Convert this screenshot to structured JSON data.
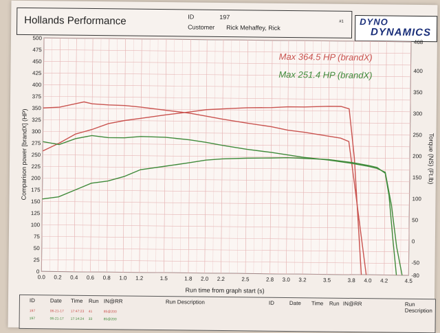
{
  "header": {
    "shop_name": "Hollands Performance",
    "id_label": "ID",
    "id_value": "197",
    "customer_label": "Customer",
    "customer_value": "Rick Mehaffey, Rick",
    "page_mark": "#1"
  },
  "logo": {
    "line1": "DYNO",
    "line2": "DYNAMICS"
  },
  "colors": {
    "run_red": "#c9534f",
    "run_green": "#3f8a3a",
    "grid": "#e6b5b5",
    "text": "#222222"
  },
  "chart_data": {
    "type": "line",
    "xlabel": "Run time from graph start (s)",
    "ylabel": "Comparison power [brandX] (HP)",
    "y2label": "Torque (NS) (Ft.lb)",
    "xlim": [
      0,
      4.5
    ],
    "ylim": [
      0,
      500
    ],
    "y2lim": [
      -80,
      468
    ],
    "grid": true,
    "x_ticks": [
      "0.0",
      "0.2",
      "0.4",
      "0.6",
      "0.8",
      "1.0",
      "1.2",
      "1.5",
      "1.8",
      "2.0",
      "2.2",
      "2.5",
      "2.8",
      "3.0",
      "3.2",
      "3.5",
      "3.8",
      "4.0",
      "4.2",
      "4.5"
    ],
    "y_ticks": [
      "500",
      "475",
      "450",
      "425",
      "400",
      "375",
      "350",
      "325",
      "300",
      "275",
      "250",
      "225",
      "200",
      "175",
      "150",
      "125",
      "100",
      "75",
      "50",
      "25",
      "0"
    ],
    "y2_ticks": [
      "468",
      "400",
      "350",
      "300",
      "250",
      "200",
      "150",
      "100",
      "50",
      "0",
      "-50",
      "-80"
    ],
    "annotations": [
      {
        "text": "Max 364.5 HP (brandX)",
        "color": "#c9534f"
      },
      {
        "text": "Max 251.4 HP (brandX)",
        "color": "#3f8a3a"
      }
    ],
    "series": [
      {
        "color": "#c9534f",
        "kind": "power",
        "points": [
          [
            0,
            258
          ],
          [
            0.2,
            275
          ],
          [
            0.4,
            295
          ],
          [
            0.6,
            305
          ],
          [
            0.8,
            318
          ],
          [
            1.0,
            325
          ],
          [
            1.2,
            330
          ],
          [
            1.5,
            338
          ],
          [
            1.8,
            345
          ],
          [
            2.0,
            350
          ],
          [
            2.2,
            352
          ],
          [
            2.5,
            355
          ],
          [
            2.8,
            356
          ],
          [
            3.0,
            358
          ],
          [
            3.2,
            358
          ],
          [
            3.5,
            360
          ],
          [
            3.65,
            360
          ],
          [
            3.75,
            355
          ],
          [
            3.82,
            250
          ],
          [
            3.88,
            100
          ],
          [
            3.92,
            0
          ]
        ]
      },
      {
        "color": "#c9534f",
        "kind": "torque",
        "points": [
          [
            0,
            350
          ],
          [
            0.2,
            352
          ],
          [
            0.4,
            360
          ],
          [
            0.5,
            364
          ],
          [
            0.6,
            360
          ],
          [
            0.8,
            358
          ],
          [
            1.0,
            357
          ],
          [
            1.2,
            354
          ],
          [
            1.5,
            348
          ],
          [
            1.8,
            342
          ],
          [
            2.0,
            336
          ],
          [
            2.2,
            330
          ],
          [
            2.5,
            322
          ],
          [
            2.8,
            315
          ],
          [
            3.0,
            308
          ],
          [
            3.2,
            304
          ],
          [
            3.5,
            296
          ],
          [
            3.65,
            292
          ],
          [
            3.75,
            285
          ],
          [
            3.82,
            200
          ],
          [
            3.9,
            100
          ],
          [
            3.98,
            0
          ]
        ]
      },
      {
        "color": "#3f8a3a",
        "kind": "power",
        "points": [
          [
            0,
            155
          ],
          [
            0.2,
            160
          ],
          [
            0.4,
            175
          ],
          [
            0.6,
            190
          ],
          [
            0.8,
            195
          ],
          [
            1.0,
            205
          ],
          [
            1.2,
            220
          ],
          [
            1.5,
            228
          ],
          [
            1.8,
            236
          ],
          [
            2.0,
            242
          ],
          [
            2.2,
            245
          ],
          [
            2.5,
            247
          ],
          [
            2.8,
            248
          ],
          [
            3.0,
            249
          ],
          [
            3.2,
            248
          ],
          [
            3.5,
            246
          ],
          [
            3.8,
            240
          ],
          [
            4.0,
            234
          ],
          [
            4.1,
            230
          ],
          [
            4.2,
            218
          ],
          [
            4.25,
            170
          ],
          [
            4.3,
            80
          ],
          [
            4.35,
            0
          ]
        ]
      },
      {
        "color": "#3f8a3a",
        "kind": "torque",
        "points": [
          [
            0,
            278
          ],
          [
            0.2,
            272
          ],
          [
            0.4,
            285
          ],
          [
            0.6,
            292
          ],
          [
            0.8,
            288
          ],
          [
            1.0,
            288
          ],
          [
            1.2,
            291
          ],
          [
            1.5,
            290
          ],
          [
            1.8,
            285
          ],
          [
            2.0,
            280
          ],
          [
            2.2,
            274
          ],
          [
            2.5,
            266
          ],
          [
            2.8,
            260
          ],
          [
            3.0,
            255
          ],
          [
            3.2,
            250
          ],
          [
            3.5,
            245
          ],
          [
            3.8,
            238
          ],
          [
            4.0,
            232
          ],
          [
            4.1,
            228
          ],
          [
            4.2,
            220
          ],
          [
            4.28,
            150
          ],
          [
            4.35,
            60
          ],
          [
            4.42,
            0
          ]
        ]
      }
    ]
  },
  "run_table": {
    "columns": [
      "ID",
      "Date",
      "Time",
      "Run",
      "IN@RR",
      "Run Description",
      "ID",
      "Date",
      "Time",
      "Run",
      "IN@RR",
      "Run Description"
    ],
    "rows": [
      {
        "id": "197",
        "date": "06-21-17",
        "time": "17:47:23",
        "run": "41",
        "inrr": "85@200",
        "color": "#c9534f"
      },
      {
        "id": "197",
        "date": "06-21-17",
        "time": "17:14:24",
        "run": "33",
        "inrr": "85@200",
        "color": "#3f8a3a"
      }
    ]
  }
}
